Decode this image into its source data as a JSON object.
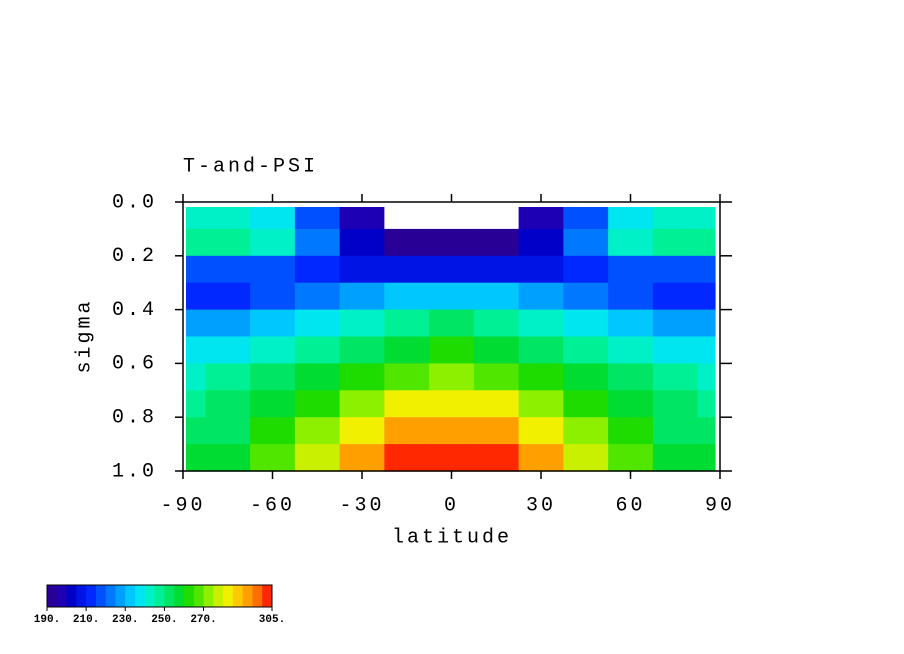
{
  "chart_data": {
    "type": "contour",
    "title": "T-and-PSI",
    "xlabel": "latitude",
    "ylabel": "sigma",
    "x": [
      -90,
      -75,
      -60,
      -45,
      -30,
      -15,
      0,
      15,
      30,
      45,
      60,
      75,
      90
    ],
    "y": [
      0.05,
      0.15,
      0.25,
      0.35,
      0.45,
      0.55,
      0.65,
      0.75,
      0.85,
      0.95
    ],
    "z": [
      [
        242,
        244,
        238,
        215,
        195,
        185,
        185,
        185,
        195,
        215,
        238,
        244,
        242
      ],
      [
        245,
        246,
        240,
        220,
        200,
        192,
        191,
        192,
        200,
        220,
        240,
        246,
        245
      ],
      [
        218,
        218,
        217,
        212,
        208,
        206,
        205,
        206,
        208,
        212,
        217,
        218,
        218
      ],
      [
        212,
        214,
        218,
        222,
        228,
        232,
        234,
        232,
        228,
        222,
        218,
        214,
        212
      ],
      [
        226,
        228,
        232,
        238,
        244,
        248,
        250,
        248,
        244,
        238,
        232,
        228,
        226
      ],
      [
        236,
        238,
        242,
        248,
        254,
        258,
        260,
        258,
        254,
        248,
        242,
        238,
        236
      ],
      [
        244,
        246,
        250,
        256,
        264,
        268,
        270,
        268,
        264,
        256,
        250,
        246,
        244
      ],
      [
        248,
        250,
        256,
        264,
        274,
        280,
        282,
        280,
        274,
        264,
        256,
        250,
        248
      ],
      [
        252,
        254,
        262,
        270,
        284,
        292,
        294,
        292,
        284,
        270,
        262,
        254,
        252
      ],
      [
        255,
        258,
        266,
        276,
        292,
        300,
        302,
        300,
        292,
        276,
        266,
        258,
        255
      ]
    ],
    "xlim": [
      -90,
      90
    ],
    "ylim": [
      0,
      1
    ],
    "yaxis_inverted": true,
    "xticks": [
      -90,
      -60,
      -30,
      0,
      30,
      60,
      90
    ],
    "yticks": [
      {
        "value": 0,
        "label": "0.0"
      },
      {
        "value": 0.2,
        "label": "0.2"
      },
      {
        "value": 0.4,
        "label": "0.4"
      },
      {
        "value": 0.6,
        "label": "0.6"
      },
      {
        "value": 0.8,
        "label": "0.8"
      },
      {
        "value": 1,
        "label": "1.0"
      }
    ],
    "colorbar": {
      "clim": [
        190,
        305
      ],
      "colors": [
        "#280096",
        "#1e00b4",
        "#0000c8",
        "#0014e6",
        "#0028ff",
        "#0050ff",
        "#0078ff",
        "#00a0ff",
        "#00c8ff",
        "#00e6f0",
        "#00f0c8",
        "#00f096",
        "#00e664",
        "#00dc32",
        "#1edc00",
        "#50e600",
        "#8cf000",
        "#c8f000",
        "#f0f000",
        "#ffc800",
        "#ffa000",
        "#ff6e00",
        "#ff2800"
      ],
      "ticks": [
        {
          "value": 190,
          "label": "190."
        },
        {
          "value": 210,
          "label": "210."
        },
        {
          "value": 230,
          "label": "230."
        },
        {
          "value": 250,
          "label": "250."
        },
        {
          "value": 270,
          "label": "270."
        },
        {
          "value": 305,
          "label": "305."
        }
      ]
    }
  }
}
